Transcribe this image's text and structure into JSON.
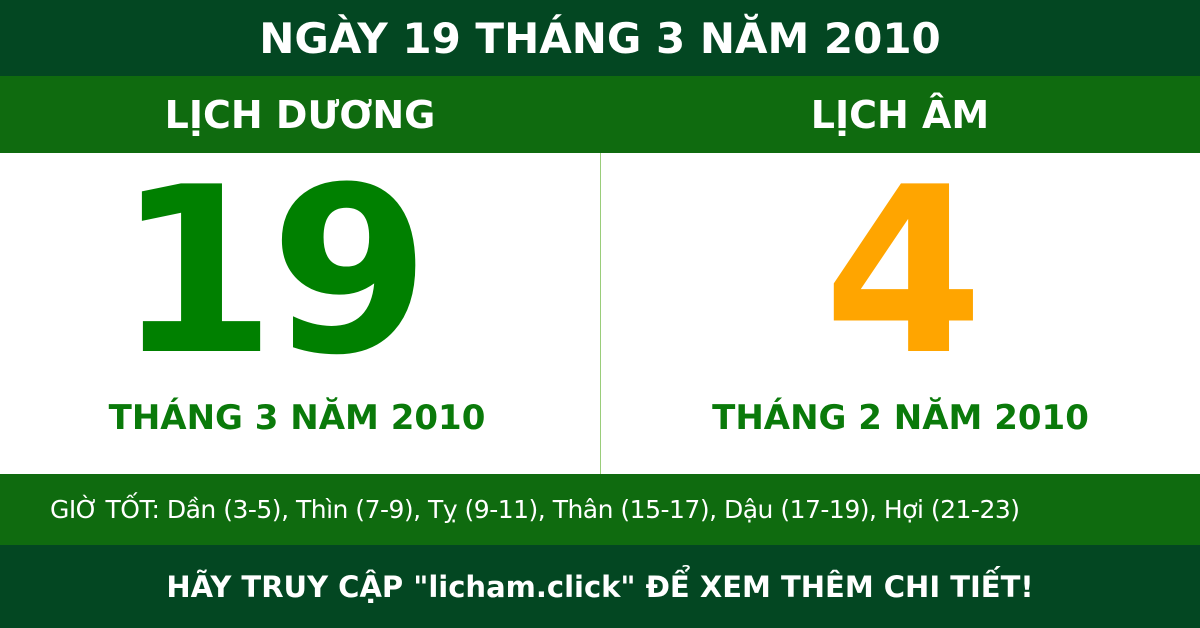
{
  "header": {
    "title": "NGÀY 19 THÁNG 3 NĂM 2010"
  },
  "solar": {
    "label": "LỊCH DƯƠNG",
    "day": "19",
    "month_year": "THÁNG 3 NĂM 2010"
  },
  "lunar": {
    "label": "LỊCH ÂM",
    "day": "4",
    "month_year": "THÁNG 2 NĂM 2010"
  },
  "good_hours": "GIỜ TỐT: Dần (3-5), Thìn (7-9), Tỵ (9-11), Thân (15-17), Dậu (17-19), Hợi (21-23)",
  "footer": {
    "text": "HÃY TRUY CẬP \"licham.click\" ĐỂ XEM THÊM CHI TIẾT!"
  },
  "colors": {
    "dark_green": "#034722",
    "green": "#0f6b0f",
    "solar_day": "#008000",
    "lunar_day": "#ffa500"
  }
}
